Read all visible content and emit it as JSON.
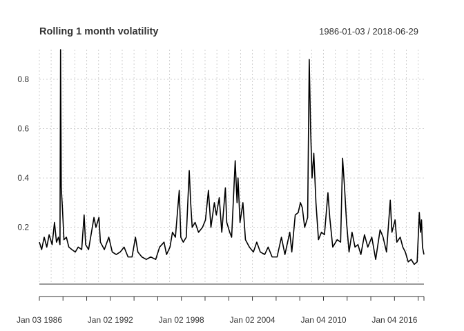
{
  "chart_data": {
    "type": "line",
    "title": "Rolling 1 month volatility",
    "date_range": "1986-01-03 / 2018-06-29",
    "x_start": "1986-01-03",
    "x_end": "2018-06-29",
    "xlabel": "",
    "ylabel": "",
    "ylim": [
      -0.03,
      0.92
    ],
    "y_ticks": [
      0.2,
      0.4,
      0.6,
      0.8
    ],
    "y_tick_labels": [
      "0.2",
      "0.4",
      "0.6",
      "0.8"
    ],
    "x_ticks": [
      "1986-01-03",
      "1992-01-02",
      "1998-01-02",
      "2004-01-02",
      "2010-01-04",
      "2016-01-04"
    ],
    "x_tick_labels": [
      "Jan 03 1986",
      "Jan 02 1992",
      "Jan 02 1998",
      "Jan 02 2004",
      "Jan 04 2010",
      "Jan 04 2016"
    ],
    "grid": true,
    "line_color": "#000000",
    "series": [
      {
        "points": [
          [
            "1986-01-03",
            0.14
          ],
          [
            "1986-03-15",
            0.11
          ],
          [
            "1986-06-01",
            0.16
          ],
          [
            "1986-08-20",
            0.12
          ],
          [
            "1986-11-01",
            0.17
          ],
          [
            "1987-02-01",
            0.13
          ],
          [
            "1987-04-15",
            0.22
          ],
          [
            "1987-06-15",
            0.14
          ],
          [
            "1987-08-15",
            0.16
          ],
          [
            "1987-10-01",
            0.13
          ],
          [
            "1987-10-19",
            0.92
          ],
          [
            "1987-11-10",
            0.36
          ],
          [
            "1987-12-15",
            0.28
          ],
          [
            "1988-02-01",
            0.15
          ],
          [
            "1988-04-15",
            0.16
          ],
          [
            "1988-07-01",
            0.12
          ],
          [
            "1988-10-01",
            0.11
          ],
          [
            "1989-01-15",
            0.1
          ],
          [
            "1989-04-15",
            0.12
          ],
          [
            "1989-08-01",
            0.11
          ],
          [
            "1989-10-15",
            0.25
          ],
          [
            "1989-12-01",
            0.13
          ],
          [
            "1990-03-01",
            0.11
          ],
          [
            "1990-08-15",
            0.24
          ],
          [
            "1990-10-15",
            0.2
          ],
          [
            "1991-01-15",
            0.24
          ],
          [
            "1991-03-01",
            0.14
          ],
          [
            "1991-07-01",
            0.11
          ],
          [
            "1991-11-15",
            0.16
          ],
          [
            "1992-03-01",
            0.1
          ],
          [
            "1992-07-01",
            0.09
          ],
          [
            "1992-11-01",
            0.1
          ],
          [
            "1993-03-01",
            0.12
          ],
          [
            "1993-07-01",
            0.08
          ],
          [
            "1993-11-01",
            0.08
          ],
          [
            "1994-02-15",
            0.16
          ],
          [
            "1994-05-01",
            0.1
          ],
          [
            "1994-09-01",
            0.08
          ],
          [
            "1995-01-15",
            0.07
          ],
          [
            "1995-06-01",
            0.08
          ],
          [
            "1995-11-01",
            0.07
          ],
          [
            "1996-03-01",
            0.12
          ],
          [
            "1996-07-15",
            0.14
          ],
          [
            "1996-10-01",
            0.09
          ],
          [
            "1997-01-15",
            0.12
          ],
          [
            "1997-04-01",
            0.18
          ],
          [
            "1997-07-01",
            0.16
          ],
          [
            "1997-10-28",
            0.35
          ],
          [
            "1997-12-15",
            0.16
          ],
          [
            "1998-03-01",
            0.14
          ],
          [
            "1998-06-01",
            0.16
          ],
          [
            "1998-09-01",
            0.43
          ],
          [
            "1998-10-15",
            0.3
          ],
          [
            "1998-12-01",
            0.2
          ],
          [
            "1999-03-01",
            0.22
          ],
          [
            "1999-06-15",
            0.18
          ],
          [
            "1999-10-15",
            0.2
          ],
          [
            "2000-01-15",
            0.23
          ],
          [
            "2000-04-15",
            0.35
          ],
          [
            "2000-07-01",
            0.2
          ],
          [
            "2000-10-15",
            0.3
          ],
          [
            "2000-12-15",
            0.25
          ],
          [
            "2001-03-15",
            0.32
          ],
          [
            "2001-06-01",
            0.18
          ],
          [
            "2001-09-20",
            0.36
          ],
          [
            "2001-11-01",
            0.22
          ],
          [
            "2002-02-01",
            0.18
          ],
          [
            "2002-04-01",
            0.16
          ],
          [
            "2002-07-20",
            0.47
          ],
          [
            "2002-09-15",
            0.3
          ],
          [
            "2002-10-15",
            0.4
          ],
          [
            "2002-12-15",
            0.22
          ],
          [
            "2003-03-15",
            0.3
          ],
          [
            "2003-06-01",
            0.15
          ],
          [
            "2003-10-01",
            0.12
          ],
          [
            "2004-02-01",
            0.1
          ],
          [
            "2004-05-15",
            0.14
          ],
          [
            "2004-09-01",
            0.1
          ],
          [
            "2005-01-15",
            0.09
          ],
          [
            "2005-05-01",
            0.12
          ],
          [
            "2005-09-01",
            0.08
          ],
          [
            "2006-02-01",
            0.08
          ],
          [
            "2006-06-15",
            0.16
          ],
          [
            "2006-10-01",
            0.09
          ],
          [
            "2007-02-28",
            0.18
          ],
          [
            "2007-05-01",
            0.1
          ],
          [
            "2007-08-15",
            0.25
          ],
          [
            "2007-11-15",
            0.26
          ],
          [
            "2008-01-22",
            0.3
          ],
          [
            "2008-03-20",
            0.28
          ],
          [
            "2008-06-01",
            0.2
          ],
          [
            "2008-09-01",
            0.24
          ],
          [
            "2008-10-20",
            0.88
          ],
          [
            "2008-12-01",
            0.6
          ],
          [
            "2009-01-15",
            0.4
          ],
          [
            "2009-03-10",
            0.5
          ],
          [
            "2009-05-15",
            0.3
          ],
          [
            "2009-08-01",
            0.15
          ],
          [
            "2009-11-01",
            0.18
          ],
          [
            "2010-02-01",
            0.17
          ],
          [
            "2010-05-20",
            0.34
          ],
          [
            "2010-07-15",
            0.24
          ],
          [
            "2010-10-15",
            0.12
          ],
          [
            "2011-03-01",
            0.15
          ],
          [
            "2011-06-15",
            0.14
          ],
          [
            "2011-08-15",
            0.48
          ],
          [
            "2011-10-15",
            0.36
          ],
          [
            "2011-12-15",
            0.22
          ],
          [
            "2012-03-01",
            0.1
          ],
          [
            "2012-06-01",
            0.18
          ],
          [
            "2012-09-01",
            0.12
          ],
          [
            "2012-12-01",
            0.13
          ],
          [
            "2013-03-01",
            0.09
          ],
          [
            "2013-06-20",
            0.17
          ],
          [
            "2013-10-01",
            0.12
          ],
          [
            "2014-02-01",
            0.16
          ],
          [
            "2014-06-01",
            0.07
          ],
          [
            "2014-10-15",
            0.19
          ],
          [
            "2015-01-15",
            0.16
          ],
          [
            "2015-05-01",
            0.1
          ],
          [
            "2015-08-25",
            0.31
          ],
          [
            "2015-10-15",
            0.18
          ],
          [
            "2016-01-20",
            0.23
          ],
          [
            "2016-03-15",
            0.14
          ],
          [
            "2016-06-27",
            0.16
          ],
          [
            "2016-09-15",
            0.12
          ],
          [
            "2016-12-01",
            0.1
          ],
          [
            "2017-03-01",
            0.06
          ],
          [
            "2017-06-01",
            0.07
          ],
          [
            "2017-09-01",
            0.05
          ],
          [
            "2017-12-01",
            0.06
          ],
          [
            "2018-02-06",
            0.26
          ],
          [
            "2018-03-15",
            0.18
          ],
          [
            "2018-04-15",
            0.23
          ],
          [
            "2018-05-15",
            0.12
          ],
          [
            "2018-06-29",
            0.09
          ]
        ]
      }
    ]
  }
}
